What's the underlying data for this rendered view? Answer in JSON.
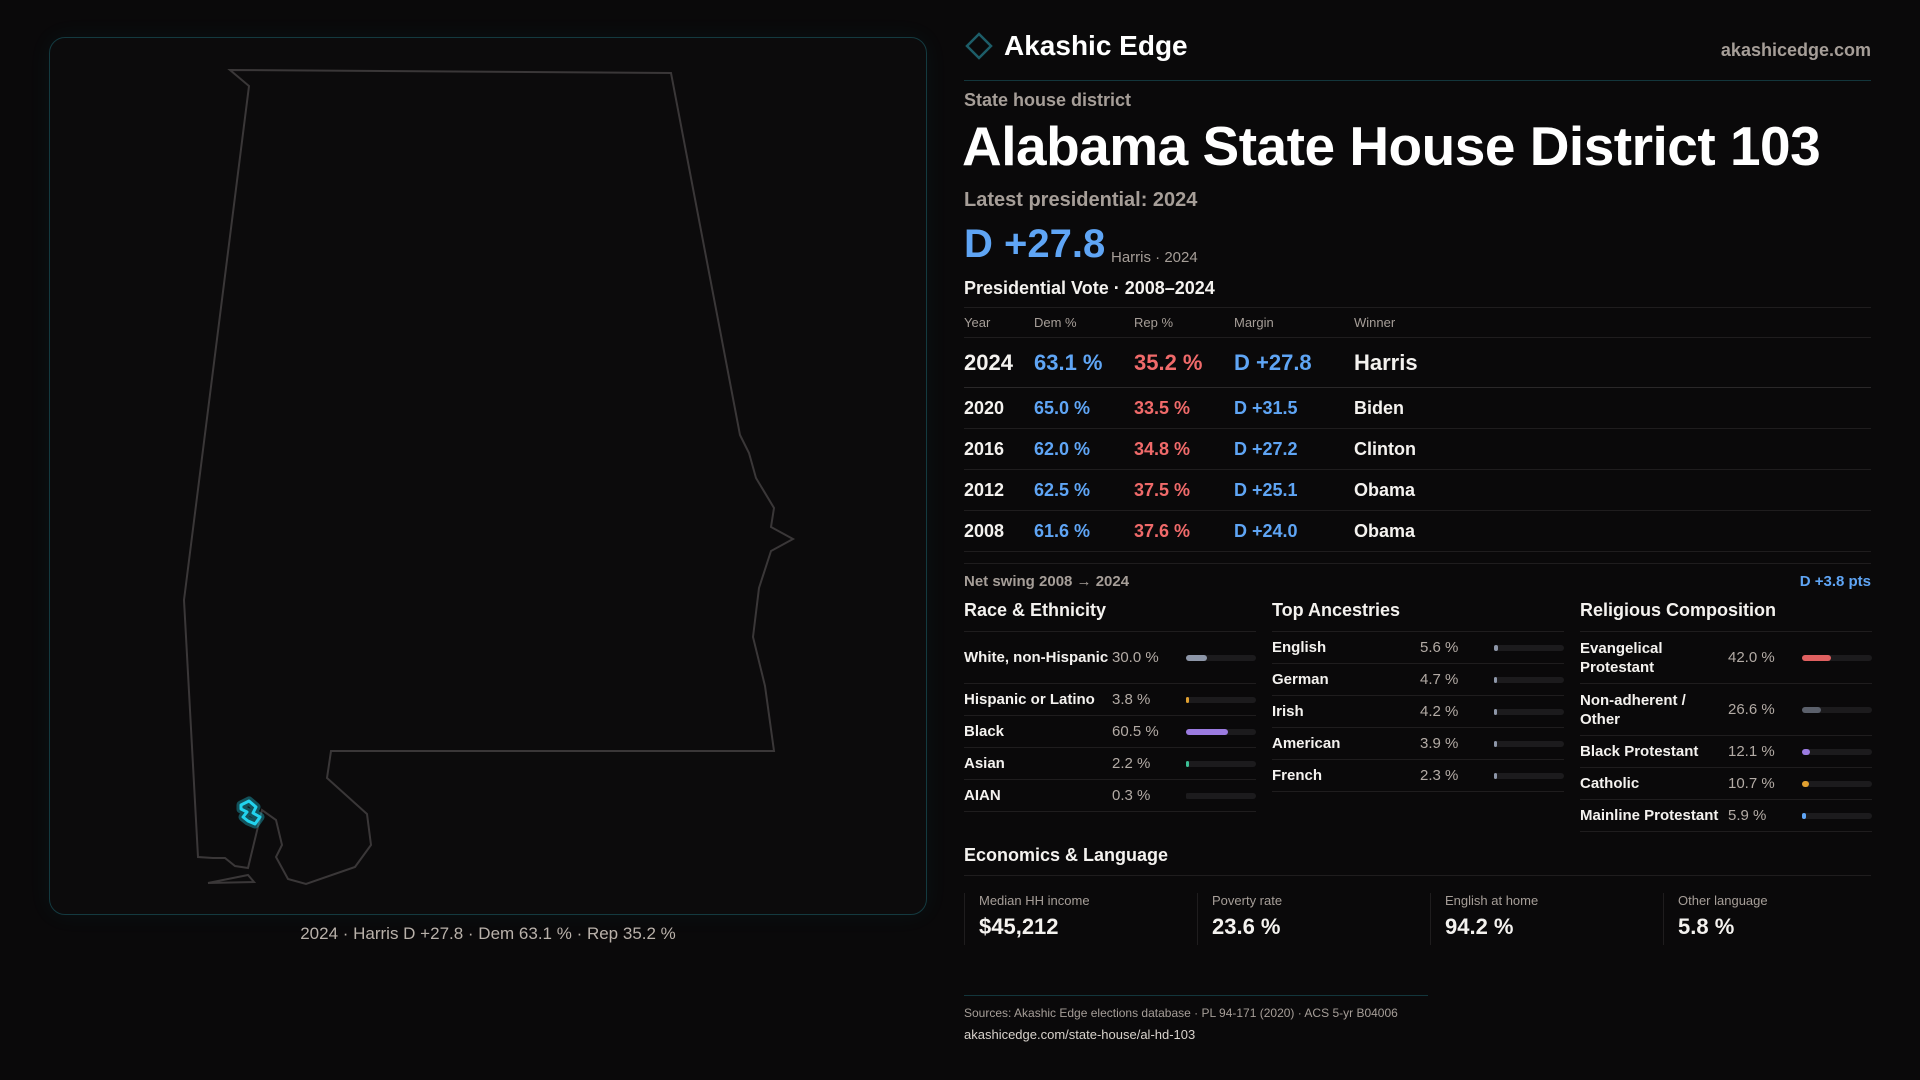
{
  "map": {
    "caption": "2024 · Harris D +27.8 · Dem 63.1 % · Rep 35.2 %",
    "highlight_color": "#22d3ee"
  },
  "brand": {
    "name": "Akashic Edge",
    "site": "akashicedge.com",
    "icon": "diamond-icon"
  },
  "header": {
    "kicker": "State house district",
    "title": "Alabama State House District 103",
    "latest_label": "Latest presidential: 2024",
    "margin": "D +27.8",
    "margin_note": "Harris · 2024"
  },
  "colors": {
    "dem": "#5fa5f5",
    "rep": "#f06a6a"
  },
  "pres": {
    "title": "Presidential Vote · 2008–2024",
    "columns": [
      "Year",
      "Dem %",
      "Rep %",
      "Margin",
      "Winner"
    ],
    "rows": [
      {
        "year": "2024",
        "dem": "63.1 %",
        "rep": "35.2 %",
        "margin": "D +27.8",
        "winner": "Harris"
      },
      {
        "year": "2020",
        "dem": "65.0 %",
        "rep": "33.5 %",
        "margin": "D +31.5",
        "winner": "Biden"
      },
      {
        "year": "2016",
        "dem": "62.0 %",
        "rep": "34.8 %",
        "margin": "D +27.2",
        "winner": "Clinton"
      },
      {
        "year": "2012",
        "dem": "62.5 %",
        "rep": "37.5 %",
        "margin": "D +25.1",
        "winner": "Obama"
      },
      {
        "year": "2008",
        "dem": "61.6 %",
        "rep": "37.6 %",
        "margin": "D +24.0",
        "winner": "Obama"
      }
    ],
    "swing_label": "Net swing 2008 → 2024",
    "swing_value": "D +3.8 pts"
  },
  "race": {
    "title": "Race & Ethnicity",
    "items": [
      {
        "label": "White, non-Hispanic",
        "value": "30.0 %",
        "pct": 30.0,
        "color": "#8d96a8"
      },
      {
        "label": "Hispanic or Latino",
        "value": "3.8 %",
        "pct": 3.8,
        "color": "#e0a030"
      },
      {
        "label": "Black",
        "value": "60.5 %",
        "pct": 60.5,
        "color": "#9b7be0"
      },
      {
        "label": "Asian",
        "value": "2.2 %",
        "pct": 2.2,
        "color": "#3cbf95"
      },
      {
        "label": "AIAN",
        "value": "0.3 %",
        "pct": 0.3,
        "color": "#1c1b1d"
      }
    ]
  },
  "ancestry": {
    "title": "Top Ancestries",
    "items": [
      {
        "label": "English",
        "value": "5.6 %",
        "pct": 5.6,
        "color": "#8d96a8"
      },
      {
        "label": "German",
        "value": "4.7 %",
        "pct": 4.7,
        "color": "#8d96a8"
      },
      {
        "label": "Irish",
        "value": "4.2 %",
        "pct": 4.2,
        "color": "#8d96a8"
      },
      {
        "label": "American",
        "value": "3.9 %",
        "pct": 3.9,
        "color": "#8d96a8"
      },
      {
        "label": "French",
        "value": "2.3 %",
        "pct": 2.3,
        "color": "#8d96a8"
      }
    ]
  },
  "religion": {
    "title": "Religious Composition",
    "items": [
      {
        "label": "Evangelical Protestant",
        "value": "42.0 %",
        "pct": 42.0,
        "color": "#e06060"
      },
      {
        "label": "Non-adherent / Other",
        "value": "26.6 %",
        "pct": 26.6,
        "color": "#5b606b"
      },
      {
        "label": "Black Protestant",
        "value": "12.1 %",
        "pct": 12.1,
        "color": "#9b7be0"
      },
      {
        "label": "Catholic",
        "value": "10.7 %",
        "pct": 10.7,
        "color": "#e0a030"
      },
      {
        "label": "Mainline Protestant",
        "value": "5.9 %",
        "pct": 5.9,
        "color": "#5fa5f5"
      }
    ]
  },
  "econ": {
    "title": "Economics & Language",
    "cards": [
      {
        "label": "Median HH income",
        "value": "$45,212"
      },
      {
        "label": "Poverty rate",
        "value": "23.6 %"
      },
      {
        "label": "English at home",
        "value": "94.2 %"
      },
      {
        "label": "Other language",
        "value": "5.8 %"
      }
    ]
  },
  "footer": {
    "sources": "Sources: Akashic Edge elections database · PL 94-171 (2020) · ACS 5-yr B04006",
    "url": "akashicedge.com/state-house/al-hd-103"
  }
}
